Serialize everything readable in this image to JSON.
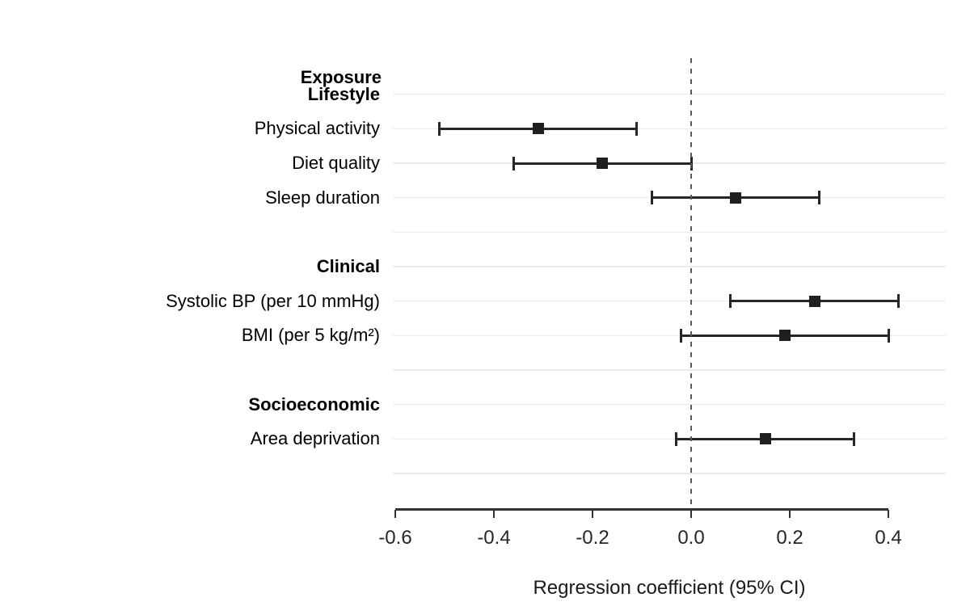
{
  "chart_data": {
    "type": "forest",
    "title": "",
    "column_header": "Exposure",
    "xlabel": "Regression coefficient (95% CI)",
    "x_ticks": [
      -0.6,
      -0.4,
      -0.2,
      0.0,
      0.2,
      0.4
    ],
    "x_tick_labels": [
      "-0.6",
      "-0.4",
      "-0.2",
      "0.0",
      "0.2",
      "0.4"
    ],
    "xlim": [
      -0.605,
      0.517
    ],
    "reference_line_x": 0.0,
    "grid": true,
    "legend": "none",
    "rows": [
      {
        "type": "header",
        "label": "Lifestyle"
      },
      {
        "type": "item",
        "label": "Physical activity",
        "estimate": -0.31,
        "ci_low": -0.51,
        "ci_high": -0.11
      },
      {
        "type": "item",
        "label": "Diet quality",
        "estimate": -0.18,
        "ci_low": -0.36,
        "ci_high": 0.0
      },
      {
        "type": "item",
        "label": "Sleep duration",
        "estimate": 0.09,
        "ci_low": -0.08,
        "ci_high": 0.26
      },
      {
        "type": "spacer",
        "label": ""
      },
      {
        "type": "header",
        "label": "Clinical"
      },
      {
        "type": "item",
        "label": "Systolic BP (per 10 mmHg)",
        "estimate": 0.25,
        "ci_low": 0.08,
        "ci_high": 0.42
      },
      {
        "type": "item",
        "label": "BMI (per 5 kg/m²)",
        "estimate": 0.19,
        "ci_low": -0.02,
        "ci_high": 0.4
      },
      {
        "type": "spacer",
        "label": ""
      },
      {
        "type": "header",
        "label": "Socioeconomic"
      },
      {
        "type": "item",
        "label": "Area deprivation",
        "estimate": 0.15,
        "ci_low": -0.03,
        "ci_high": 0.33
      },
      {
        "type": "spacer",
        "label": ""
      }
    ]
  },
  "colors": {
    "background": "#ffffff",
    "estimate_marker": "#1f1f1f",
    "ci_bar": "#262626",
    "gridline": "#ebebeb",
    "reference_line": "#595959",
    "axis": "#333333",
    "text": "#000000"
  }
}
